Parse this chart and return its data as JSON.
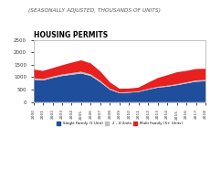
{
  "title": "HOUSING PERMITS",
  "subtitle": "(SEASONALLY ADJUSTED, THOUSANDS OF UNITS)",
  "years": [
    2000,
    2001,
    2002,
    2003,
    2004,
    2005,
    2006,
    2007,
    2008,
    2009,
    2010,
    2011,
    2012,
    2013,
    2014,
    2015,
    2016,
    2017,
    2018
  ],
  "single_family": [
    900,
    870,
    970,
    1050,
    1100,
    1150,
    1050,
    800,
    500,
    360,
    380,
    410,
    500,
    580,
    620,
    680,
    750,
    820,
    840
  ],
  "two_to_four": [
    60,
    55,
    55,
    60,
    65,
    70,
    65,
    55,
    40,
    30,
    25,
    25,
    30,
    35,
    40,
    40,
    45,
    50,
    50
  ],
  "multi_family": [
    350,
    330,
    340,
    370,
    420,
    460,
    440,
    380,
    260,
    150,
    140,
    150,
    250,
    350,
    420,
    480,
    460,
    460,
    450
  ],
  "color_single": "#1f4e9c",
  "color_two_four": "#c0c0c0",
  "color_multi": "#e82020",
  "ylim": [
    0,
    2500
  ],
  "yticks": [
    0,
    500,
    1000,
    1500,
    2000,
    2500
  ],
  "background_color": "#1f4e9c",
  "title_fontsize": 5.5,
  "subtitle_fontsize": 4.2,
  "legend_labels": [
    "Single Family (1 Unit)",
    "2 - 4 Units",
    "Multi Family (5+ Units)"
  ]
}
